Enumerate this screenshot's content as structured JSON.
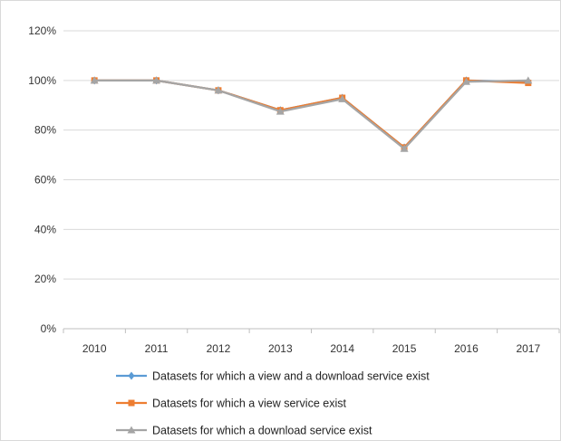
{
  "chart_data": {
    "type": "line",
    "title": "",
    "xlabel": "",
    "ylabel": "",
    "categories": [
      "2010",
      "2011",
      "2012",
      "2013",
      "2014",
      "2015",
      "2016",
      "2017"
    ],
    "ylim": [
      0,
      120
    ],
    "yticks": [
      0,
      20,
      40,
      60,
      80,
      100,
      120
    ],
    "ytick_labels": [
      "0%",
      "20%",
      "40%",
      "60%",
      "80%",
      "100%",
      "120%"
    ],
    "grid": true,
    "legend_position": "bottom",
    "series": [
      {
        "name": "Datasets for which a view and a download service exist",
        "values": [
          100,
          100,
          96,
          88,
          93,
          73,
          100,
          99.5
        ],
        "color": "#5b9bd5",
        "marker": "diamond"
      },
      {
        "name": "Datasets for which a view service exist",
        "values": [
          100,
          100,
          96,
          88,
          93,
          73,
          100,
          99
        ],
        "color": "#ed7d31",
        "marker": "square"
      },
      {
        "name": "Datasets for which a download service exist",
        "values": [
          100,
          100,
          96,
          87.5,
          92.5,
          72.5,
          99.5,
          100
        ],
        "color": "#a5a5a5",
        "marker": "triangle"
      }
    ]
  }
}
